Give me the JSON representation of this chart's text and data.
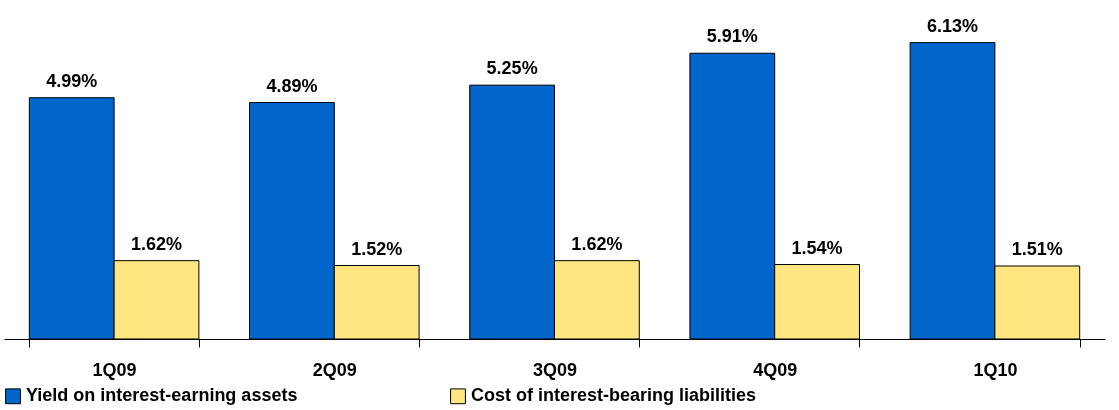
{
  "chart_data": {
    "type": "bar",
    "categories": [
      "1Q09",
      "2Q09",
      "3Q09",
      "4Q09",
      "1Q10"
    ],
    "series": [
      {
        "name": "Yield on interest-earning assets",
        "color": "#0066cc",
        "values": [
          4.99,
          4.89,
          5.25,
          5.91,
          6.13
        ],
        "value_labels": [
          "4.99%",
          "4.89%",
          "5.25%",
          "5.91%",
          "6.13%"
        ]
      },
      {
        "name": "Cost of interest-bearing liabilities",
        "color": "#ffe680",
        "values": [
          1.62,
          1.52,
          1.62,
          1.54,
          1.51
        ],
        "value_labels": [
          "1.62%",
          "1.52%",
          "1.62%",
          "1.54%",
          "1.51%"
        ]
      }
    ],
    "legend": "bottom",
    "grid": false
  }
}
